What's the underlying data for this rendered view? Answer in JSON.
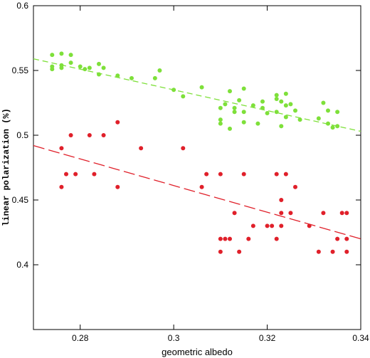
{
  "chart_data": {
    "type": "scatter",
    "xlabel": "geometric albedo",
    "ylabel": "linear polarization (%)",
    "xlim": [
      0.27,
      0.34
    ],
    "ylim": [
      0.35,
      0.6
    ],
    "x_ticks": [
      0.28,
      0.3,
      0.32,
      0.34
    ],
    "x_tick_labels": [
      "0.28",
      "0.3",
      "0.32",
      "0.34"
    ],
    "y_ticks": [
      0.4,
      0.45,
      0.5,
      0.55,
      0.6
    ],
    "y_tick_labels": [
      "0.4",
      "0.45",
      "0.5",
      "0.55",
      "0.6"
    ],
    "grid": false,
    "legend": "none",
    "series": [
      {
        "color": "#7ee03a",
        "points": [
          [
            0.274,
            0.562
          ],
          [
            0.274,
            0.553
          ],
          [
            0.274,
            0.551
          ],
          [
            0.276,
            0.563
          ],
          [
            0.276,
            0.554
          ],
          [
            0.276,
            0.552
          ],
          [
            0.278,
            0.562
          ],
          [
            0.278,
            0.556
          ],
          [
            0.28,
            0.553
          ],
          [
            0.281,
            0.551
          ],
          [
            0.282,
            0.552
          ],
          [
            0.284,
            0.555
          ],
          [
            0.284,
            0.547
          ],
          [
            0.285,
            0.552
          ],
          [
            0.288,
            0.546
          ],
          [
            0.291,
            0.544
          ],
          [
            0.296,
            0.544
          ],
          [
            0.297,
            0.55
          ],
          [
            0.3,
            0.535
          ],
          [
            0.302,
            0.53
          ],
          [
            0.306,
            0.537
          ],
          [
            0.31,
            0.521
          ],
          [
            0.31,
            0.512
          ],
          [
            0.31,
            0.509
          ],
          [
            0.311,
            0.524
          ],
          [
            0.312,
            0.534
          ],
          [
            0.312,
            0.505
          ],
          [
            0.313,
            0.521
          ],
          [
            0.313,
            0.518
          ],
          [
            0.314,
            0.527
          ],
          [
            0.315,
            0.536
          ],
          [
            0.315,
            0.518
          ],
          [
            0.315,
            0.51
          ],
          [
            0.317,
            0.523
          ],
          [
            0.318,
            0.509
          ],
          [
            0.319,
            0.521
          ],
          [
            0.319,
            0.526
          ],
          [
            0.32,
            0.517
          ],
          [
            0.322,
            0.528
          ],
          [
            0.322,
            0.518
          ],
          [
            0.322,
            0.531
          ],
          [
            0.323,
            0.507
          ],
          [
            0.323,
            0.526
          ],
          [
            0.324,
            0.514
          ],
          [
            0.324,
            0.523
          ],
          [
            0.324,
            0.532
          ],
          [
            0.325,
            0.524
          ],
          [
            0.326,
            0.519
          ],
          [
            0.327,
            0.512
          ],
          [
            0.331,
            0.513
          ],
          [
            0.332,
            0.525
          ],
          [
            0.333,
            0.509
          ],
          [
            0.333,
            0.519
          ],
          [
            0.334,
            0.506
          ],
          [
            0.335,
            0.518
          ],
          [
            0.335,
            0.507
          ]
        ],
        "fit": {
          "x": [
            0.27,
            0.34
          ],
          "y": [
            0.559,
            0.503
          ]
        }
      },
      {
        "color": "#e0202a",
        "points": [
          [
            0.276,
            0.49
          ],
          [
            0.276,
            0.46
          ],
          [
            0.277,
            0.47
          ],
          [
            0.278,
            0.5
          ],
          [
            0.279,
            0.47
          ],
          [
            0.282,
            0.5
          ],
          [
            0.283,
            0.47
          ],
          [
            0.285,
            0.5
          ],
          [
            0.288,
            0.51
          ],
          [
            0.288,
            0.46
          ],
          [
            0.293,
            0.49
          ],
          [
            0.302,
            0.49
          ],
          [
            0.306,
            0.46
          ],
          [
            0.307,
            0.47
          ],
          [
            0.31,
            0.47
          ],
          [
            0.31,
            0.42
          ],
          [
            0.31,
            0.41
          ],
          [
            0.311,
            0.42
          ],
          [
            0.312,
            0.42
          ],
          [
            0.313,
            0.44
          ],
          [
            0.314,
            0.41
          ],
          [
            0.315,
            0.47
          ],
          [
            0.316,
            0.42
          ],
          [
            0.317,
            0.43
          ],
          [
            0.32,
            0.43
          ],
          [
            0.321,
            0.43
          ],
          [
            0.322,
            0.47
          ],
          [
            0.322,
            0.42
          ],
          [
            0.323,
            0.44
          ],
          [
            0.323,
            0.45
          ],
          [
            0.323,
            0.43
          ],
          [
            0.324,
            0.47
          ],
          [
            0.325,
            0.44
          ],
          [
            0.326,
            0.46
          ],
          [
            0.329,
            0.43
          ],
          [
            0.331,
            0.41
          ],
          [
            0.332,
            0.44
          ],
          [
            0.334,
            0.41
          ],
          [
            0.335,
            0.42
          ],
          [
            0.336,
            0.44
          ],
          [
            0.337,
            0.44
          ],
          [
            0.337,
            0.42
          ],
          [
            0.337,
            0.41
          ]
        ],
        "fit": {
          "x": [
            0.27,
            0.34
          ],
          "y": [
            0.492,
            0.42
          ]
        }
      }
    ]
  }
}
